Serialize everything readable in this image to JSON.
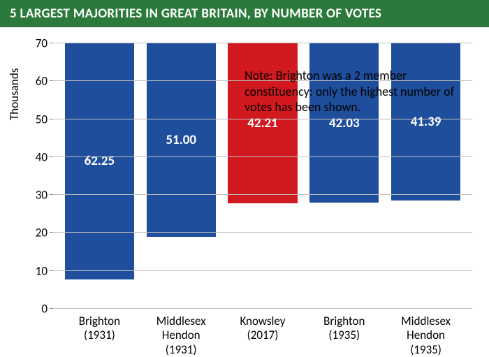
{
  "title": "5 LARGEST MAJORITIES IN GREAT BRITAIN, BY NUMBER OF VOTES",
  "note": "Note: Brighton was a 2 member constituency: only the highest number of votes has been shown.",
  "chart": {
    "type": "bar",
    "yaxis_title": "Thousands",
    "ylim_min": 0,
    "ylim_max": 70,
    "ytick_step": 10,
    "yticks": [
      0,
      10,
      20,
      30,
      40,
      50,
      60,
      70
    ],
    "grid_color": "#bfbfbf",
    "background_color": "#ffffff",
    "title_bg_color": "#2b7a3b",
    "title_color": "#ffffff",
    "label_fontsize": 17,
    "bar_label_fontsize": 19,
    "bar_width": 0.85,
    "bars": [
      {
        "category": "Brighton\n(1931)",
        "value": 62.25,
        "label": "62.25",
        "color": "#1f4e9c"
      },
      {
        "category": "Middlesex\nHendon\n(1931)",
        "value": 51.0,
        "label": "51.00",
        "color": "#1f4e9c"
      },
      {
        "category": "Knowsley\n(2017)",
        "value": 42.21,
        "label": "42.21",
        "color": "#d31920"
      },
      {
        "category": "Brighton\n(1935)",
        "value": 42.03,
        "label": "42.03",
        "color": "#1f4e9c"
      },
      {
        "category": "Middlesex\nHendon\n(1935)",
        "value": 41.39,
        "label": "41.39",
        "color": "#1f4e9c"
      }
    ]
  }
}
